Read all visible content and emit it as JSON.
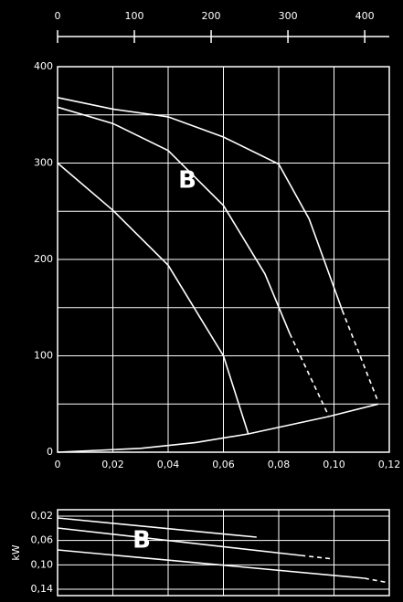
{
  "chart_data": [
    {
      "type": "line",
      "annotation": "B",
      "xlim": [
        0,
        0.12
      ],
      "ylim": [
        0,
        400
      ],
      "xticks": [
        0,
        {
          "value": 0.02,
          "label": "0,02"
        },
        {
          "value": 0.04,
          "label": "0,04"
        },
        {
          "value": 0.06,
          "label": "0,06"
        },
        {
          "value": 0.08,
          "label": "0,08"
        },
        {
          "value": 0.1,
          "label": "0,10"
        },
        {
          "value": 0.12,
          "label": "0,12"
        }
      ],
      "yticks": [
        0,
        100,
        200,
        300,
        400
      ],
      "ygrid": [
        0,
        50,
        100,
        150,
        200,
        250,
        300,
        350,
        400
      ],
      "x2lim": [
        0,
        432
      ],
      "x2ticks": [
        0,
        100,
        200,
        300,
        400
      ],
      "grid": true,
      "color": "#ffffff",
      "series": [
        {
          "x": [
            0,
            0.02,
            0.04,
            0.06,
            0.08,
            0.091,
            0.103
          ],
          "values": [
            368,
            356,
            348,
            327,
            299,
            242,
            147
          ]
        },
        {
          "x": [
            0.103,
            0.116
          ],
          "values": [
            147,
            52
          ],
          "dashed": true
        },
        {
          "x": [
            0,
            0.02,
            0.04,
            0.06,
            0.075,
            0.084
          ],
          "values": [
            358,
            341,
            313,
            256,
            185,
            123
          ]
        },
        {
          "x": [
            0.084,
            0.098
          ],
          "values": [
            123,
            38
          ],
          "dashed": true
        },
        {
          "x": [
            0,
            0.02,
            0.04,
            0.06,
            0.069
          ],
          "values": [
            300,
            251,
            194,
            100,
            19
          ]
        },
        {
          "x": [
            0,
            0.03,
            0.05,
            0.069,
            0.098,
            0.116
          ],
          "values": [
            0,
            4,
            10,
            19,
            37,
            50
          ]
        }
      ]
    },
    {
      "type": "line",
      "annotation": "B",
      "ylabel": "kW",
      "xlim": [
        0,
        0.12
      ],
      "ylim": [
        0.1505,
        0.0095
      ],
      "yticks": [
        {
          "value": 0.02,
          "label": "0,02"
        },
        {
          "value": 0.06,
          "label": "0,06"
        },
        {
          "value": 0.1,
          "label": "0,10"
        },
        {
          "value": 0.14,
          "label": "0,14"
        }
      ],
      "xgrid": [
        0,
        0.02,
        0.04,
        0.06,
        0.08,
        0.1,
        0.12
      ],
      "grid": true,
      "color": "#ffffff",
      "series": [
        {
          "x": [
            0,
            0.072
          ],
          "values": [
            0.023,
            0.0545
          ]
        },
        {
          "x": [
            0,
            0.088
          ],
          "values": [
            0.0395,
            0.0845
          ]
        },
        {
          "x": [
            0.088,
            0.1
          ],
          "values": [
            0.0845,
            0.0905
          ],
          "dashed": true
        },
        {
          "x": [
            0,
            0.111
          ],
          "values": [
            0.0755,
            0.122
          ]
        },
        {
          "x": [
            0.111,
            0.12
          ],
          "values": [
            0.122,
            0.1295
          ],
          "dashed": true
        }
      ]
    }
  ]
}
